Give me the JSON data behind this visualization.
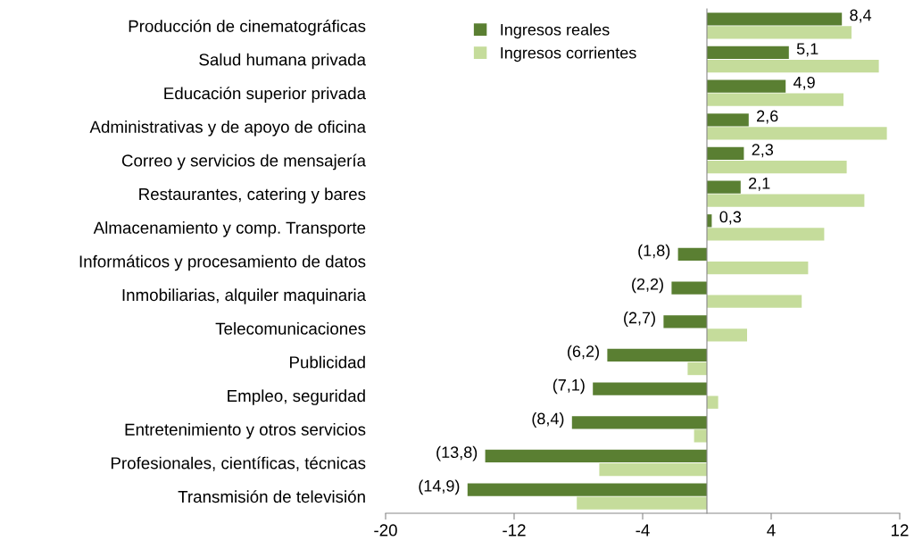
{
  "chart_data": {
    "type": "bar",
    "orientation": "horizontal",
    "categories": [
      "Producción de cinematográficas",
      "Salud humana privada",
      "Educación superior privada",
      "Administrativas y de apoyo de oficina",
      "Correo y servicios de mensajería",
      "Restaurantes, catering y bares",
      "Almacenamiento y comp. Transporte",
      "Informáticos y procesamiento de datos",
      "Inmobiliarias, alquiler maquinaria",
      "Telecomunicaciones",
      "Publicidad",
      "Empleo, seguridad",
      "Entretenimiento y otros servicios",
      "Profesionales, científicas, técnicas",
      "Transmisión de televisión"
    ],
    "series": [
      {
        "name": "Ingresos reales",
        "color": "#5a7f32",
        "values": [
          8.4,
          5.1,
          4.9,
          2.6,
          2.3,
          2.1,
          0.3,
          -1.8,
          -2.2,
          -2.7,
          -6.2,
          -7.1,
          -8.4,
          -13.8,
          -14.9
        ],
        "value_labels": [
          "8,4",
          "5,1",
          "4,9",
          "2,6",
          "2,3",
          "2,1",
          "0,3",
          "(1,8)",
          "(2,2)",
          "(2,7)",
          "(6,2)",
          "(7,1)",
          "(8,4)",
          "(13,8)",
          "(14,9)"
        ]
      },
      {
        "name": "Ingresos corrientes",
        "color": "#c5dc9b",
        "values": [
          9.0,
          10.7,
          8.5,
          11.2,
          8.7,
          9.8,
          7.3,
          6.3,
          5.9,
          2.5,
          -1.2,
          0.7,
          -0.8,
          -6.7,
          -8.1
        ]
      }
    ],
    "xlim": [
      -20,
      12
    ],
    "xticks": [
      -20,
      -12,
      -4,
      4,
      12
    ],
    "grid": false,
    "legend": "top"
  }
}
